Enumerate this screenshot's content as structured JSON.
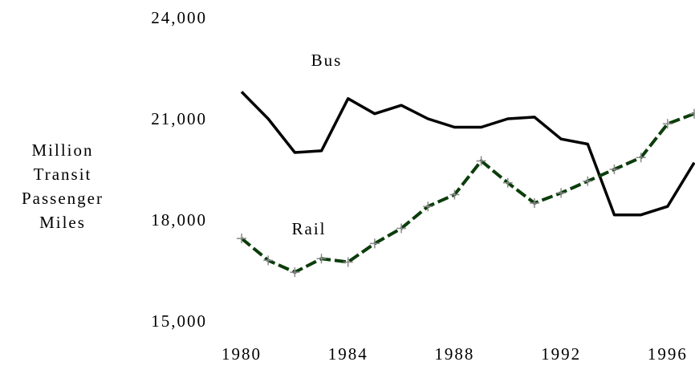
{
  "chart_data": {
    "type": "line",
    "ylabel": "Million Transit Passenger Miles",
    "x": [
      1980,
      1981,
      1982,
      1983,
      1984,
      1985,
      1986,
      1987,
      1988,
      1989,
      1990,
      1991,
      1992,
      1993,
      1994,
      1995,
      1996,
      1997
    ],
    "series": [
      {
        "name": "Bus",
        "color": "#000000",
        "values": [
          21800,
          21000,
          20000,
          20050,
          21600,
          21150,
          21400,
          21000,
          20750,
          20750,
          21000,
          21050,
          20400,
          20250,
          18150,
          18150,
          18400,
          19700
        ]
      },
      {
        "name": "Rail",
        "color": "#0b3d0b",
        "values": [
          17450,
          16800,
          16450,
          16850,
          16750,
          17300,
          17750,
          18400,
          18750,
          19750,
          19100,
          18500,
          18800,
          19150,
          19500,
          19850,
          20850,
          21150
        ]
      }
    ],
    "xlim": [
      1980,
      1997
    ],
    "xticks": [
      1980,
      1984,
      1988,
      1992,
      1996
    ],
    "ylim": [
      15000,
      24000
    ],
    "yticks": [
      {
        "value": 15000,
        "label": "15,000"
      },
      {
        "value": 18000,
        "label": "18,000"
      },
      {
        "value": 21000,
        "label": "21,000"
      },
      {
        "value": 24000,
        "label": "24,000"
      }
    ],
    "grid": false
  }
}
